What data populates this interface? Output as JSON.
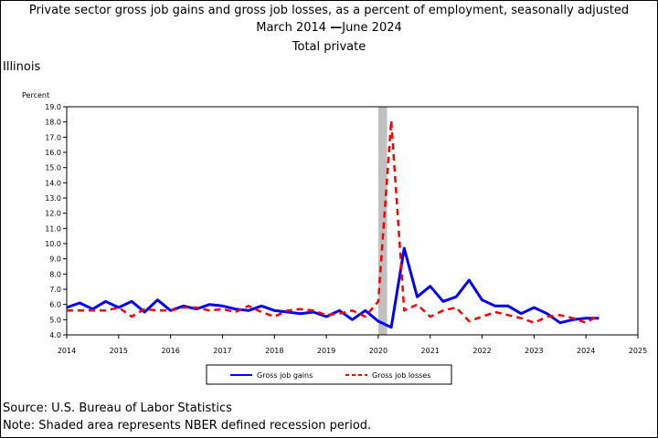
{
  "chart_data": {
    "type": "line",
    "title": "Private sector gross job gains and gross job losses, as a percent of employment, seasonally adjusted",
    "subtitle_range": {
      "start": "March 2014",
      "end": "June 2024"
    },
    "subtitle2": "Total private",
    "region": "Illinois",
    "ylabel": "Percent",
    "ylim": [
      4.0,
      19.0
    ],
    "ytick_step": 1.0,
    "xlim": [
      2014,
      2025
    ],
    "xticks": [
      "2014",
      "2015",
      "2016",
      "2017",
      "2018",
      "2019",
      "2020",
      "2021",
      "2022",
      "2023",
      "2024",
      "2025"
    ],
    "recession": {
      "start": 2020.0,
      "end": 2020.17,
      "color": "#c0c0c0"
    },
    "legend_position": "bottom",
    "series": [
      {
        "name": "Gross job gains",
        "color": "#0000ff",
        "style": "solid",
        "x": [
          2014.0,
          2014.25,
          2014.5,
          2014.75,
          2015.0,
          2015.25,
          2015.5,
          2015.75,
          2016.0,
          2016.25,
          2016.5,
          2016.75,
          2017.0,
          2017.25,
          2017.5,
          2017.75,
          2018.0,
          2018.25,
          2018.5,
          2018.75,
          2019.0,
          2019.25,
          2019.5,
          2019.75,
          2020.0,
          2020.25,
          2020.5,
          2020.75,
          2021.0,
          2021.25,
          2021.5,
          2021.75,
          2022.0,
          2022.25,
          2022.5,
          2022.75,
          2023.0,
          2023.25,
          2023.5,
          2023.75,
          2024.0,
          2024.25
        ],
        "y": [
          5.8,
          6.1,
          5.7,
          6.2,
          5.8,
          6.2,
          5.5,
          6.3,
          5.6,
          5.9,
          5.7,
          6.0,
          5.9,
          5.7,
          5.6,
          5.9,
          5.6,
          5.5,
          5.4,
          5.5,
          5.2,
          5.6,
          5.0,
          5.6,
          4.9,
          4.5,
          9.7,
          6.5,
          7.2,
          6.2,
          6.5,
          7.6,
          6.3,
          5.9,
          5.9,
          5.4,
          5.8,
          5.4,
          4.8,
          5.0,
          5.1,
          5.1
        ]
      },
      {
        "name": "Gross job losses",
        "color": "#ff0000",
        "style": "dashed",
        "x": [
          2014.0,
          2014.25,
          2014.5,
          2014.75,
          2015.0,
          2015.25,
          2015.5,
          2015.75,
          2016.0,
          2016.25,
          2016.5,
          2016.75,
          2017.0,
          2017.25,
          2017.5,
          2017.75,
          2018.0,
          2018.25,
          2018.5,
          2018.75,
          2019.0,
          2019.25,
          2019.5,
          2019.75,
          2020.0,
          2020.25,
          2020.5,
          2020.75,
          2021.0,
          2021.25,
          2021.5,
          2021.75,
          2022.0,
          2022.25,
          2022.5,
          2022.75,
          2023.0,
          2023.25,
          2023.5,
          2023.75,
          2024.0,
          2024.25
        ],
        "y": [
          5.6,
          5.6,
          5.6,
          5.6,
          5.8,
          5.2,
          5.7,
          5.6,
          5.6,
          5.8,
          5.8,
          5.6,
          5.7,
          5.5,
          5.9,
          5.5,
          5.2,
          5.6,
          5.7,
          5.6,
          5.3,
          5.4,
          5.6,
          5.2,
          6.2,
          18.1,
          5.6,
          6.0,
          5.2,
          5.6,
          5.8,
          4.9,
          5.2,
          5.5,
          5.3,
          5.1,
          4.8,
          5.2,
          5.3,
          5.1,
          4.8,
          5.3
        ]
      }
    ]
  },
  "footer": {
    "source": "Source: U.S. Bureau of Labor Statistics",
    "note": "Note: Shaded area represents NBER defined recession period."
  }
}
